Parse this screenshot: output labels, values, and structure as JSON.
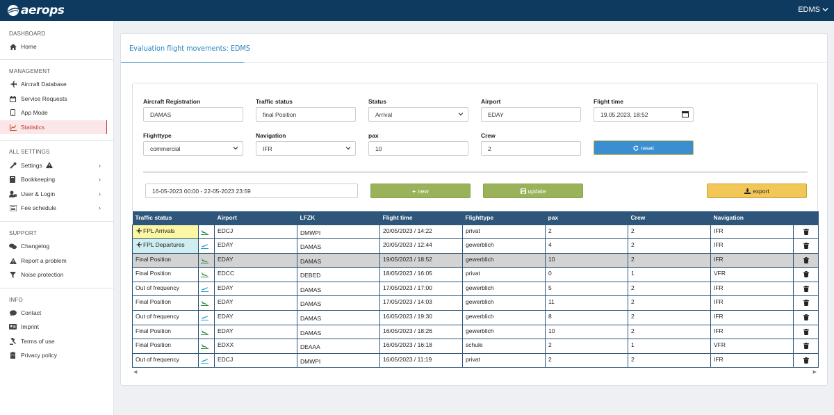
{
  "header": {
    "brand": "aerops",
    "user": "EDMS"
  },
  "colors": {
    "topbar": "#0e3a5f",
    "accent": "#2b86c2",
    "active": "#c0392b",
    "table_header": "#2d567a",
    "arrival_bg": "#fbf7a4",
    "departure_bg": "#cfeef2",
    "arrival_icon": "#2e8b3a",
    "departure_icon": "#2a9fd6"
  },
  "sidebar": {
    "dashboard_title": "DASHBOARD",
    "home": "Home",
    "management_title": "MANAGEMENT",
    "aircraft_db": "Aircraft Database",
    "service_requests": "Service Requests",
    "app_mode": "App Mode",
    "statistics": "Statistics",
    "all_settings_title": "ALL SETTINGS",
    "settings": "Settings",
    "bookkeeping": "Bookkeeping",
    "user_login": "User & Login",
    "fee_schedule": "Fee schedule",
    "support_title": "SUPPORT",
    "changelog": "Changelog",
    "report_problem": "Report a problem",
    "noise_protection": "Noise protection",
    "info_title": "INFO",
    "contact": "Contact",
    "imprint": "Imprint",
    "terms": "Terms of use",
    "privacy": "Privacy policy"
  },
  "page": {
    "title": "Evaluation flight movements: EDMS"
  },
  "form": {
    "aircraft_registration_label": "Aircraft Registration",
    "aircraft_registration_value": "DAMAS",
    "traffic_status_label": "Traffic status",
    "traffic_status_value": "final Position",
    "status_label": "Status",
    "status_value": "Arrival",
    "airport_label": "Airport",
    "airport_value": "EDAY",
    "flight_time_label": "Flight time",
    "flight_time_value": "19.05.2023, 18:52",
    "flighttype_label": "Flighttype",
    "flighttype_value": "commercial",
    "navigation_label": "Navigation",
    "navigation_value": "IFR",
    "pax_label": "pax",
    "pax_value": "10",
    "crew_label": "Crew",
    "crew_value": "2",
    "reset_label": "reset",
    "date_range_value": "16-05-2023 00:00 - 22-05-2023 23:59",
    "new_label": "new",
    "update_label": "update",
    "export_label": "export"
  },
  "table": {
    "headers": [
      "Traffic status",
      "",
      "Airport",
      "LFZK",
      "Flight time",
      "Flighttype",
      "pax",
      "Crew",
      "Navigation",
      ""
    ],
    "rows": [
      {
        "status": "FPL Arrivals",
        "kind": "arrival",
        "status_style": "arr",
        "airport": "EDCJ",
        "lfzk": "DMWPI",
        "time": "20/05/2023 / 14:22",
        "type": "privat",
        "pax": "2",
        "crew": "2",
        "nav": "IFR",
        "highlight": false
      },
      {
        "status": "FPL Departures",
        "kind": "departure",
        "status_style": "dep",
        "airport": "EDAY",
        "lfzk": "DAMAS",
        "time": "20/05/2023 / 12:44",
        "type": "gewerblich",
        "pax": "4",
        "crew": "2",
        "nav": "IFR",
        "highlight": false
      },
      {
        "status": "Final Position",
        "kind": "arrival",
        "status_style": "",
        "airport": "EDAY",
        "lfzk": "DAMAS",
        "time": "19/05/2023 / 18:52",
        "type": "gewerblich",
        "pax": "10",
        "crew": "2",
        "nav": "IFR",
        "highlight": true
      },
      {
        "status": "Final Position",
        "kind": "arrival",
        "status_style": "",
        "airport": "EDCC",
        "lfzk": "DEBED",
        "time": "18/05/2023 / 16:05",
        "type": "privat",
        "pax": "0",
        "crew": "1",
        "nav": "VFR",
        "highlight": false
      },
      {
        "status": "Out of frequency",
        "kind": "departure",
        "status_style": "",
        "airport": "EDAY",
        "lfzk": "DAMAS",
        "time": "17/05/2023 / 17:00",
        "type": "gewerblich",
        "pax": "5",
        "crew": "2",
        "nav": "IFR",
        "highlight": false
      },
      {
        "status": "Final Position",
        "kind": "arrival",
        "status_style": "",
        "airport": "EDAY",
        "lfzk": "DAMAS",
        "time": "17/05/2023 / 14:03",
        "type": "gewerblich",
        "pax": "11",
        "crew": "2",
        "nav": "IFR",
        "highlight": false
      },
      {
        "status": "Out of frequency",
        "kind": "departure",
        "status_style": "",
        "airport": "EDAY",
        "lfzk": "DAMAS",
        "time": "16/05/2023 / 19:30",
        "type": "gewerblich",
        "pax": "8",
        "crew": "2",
        "nav": "IFR",
        "highlight": false
      },
      {
        "status": "Final Position",
        "kind": "arrival",
        "status_style": "",
        "airport": "EDAY",
        "lfzk": "DAMAS",
        "time": "16/05/2023 / 18:26",
        "type": "gewerblich",
        "pax": "10",
        "crew": "2",
        "nav": "IFR",
        "highlight": false
      },
      {
        "status": "Final Position",
        "kind": "arrival",
        "status_style": "",
        "airport": "EDXX",
        "lfzk": "DEAAA",
        "time": "16/05/2023 / 16:18",
        "type": "schule",
        "pax": "2",
        "crew": "1",
        "nav": "VFR",
        "highlight": false
      },
      {
        "status": "Out of frequency",
        "kind": "departure",
        "status_style": "",
        "airport": "EDCJ",
        "lfzk": "DMWPI",
        "time": "16/05/2023 / 11:19",
        "type": "privat",
        "pax": "2",
        "crew": "2",
        "nav": "IFR",
        "highlight": false
      }
    ]
  }
}
